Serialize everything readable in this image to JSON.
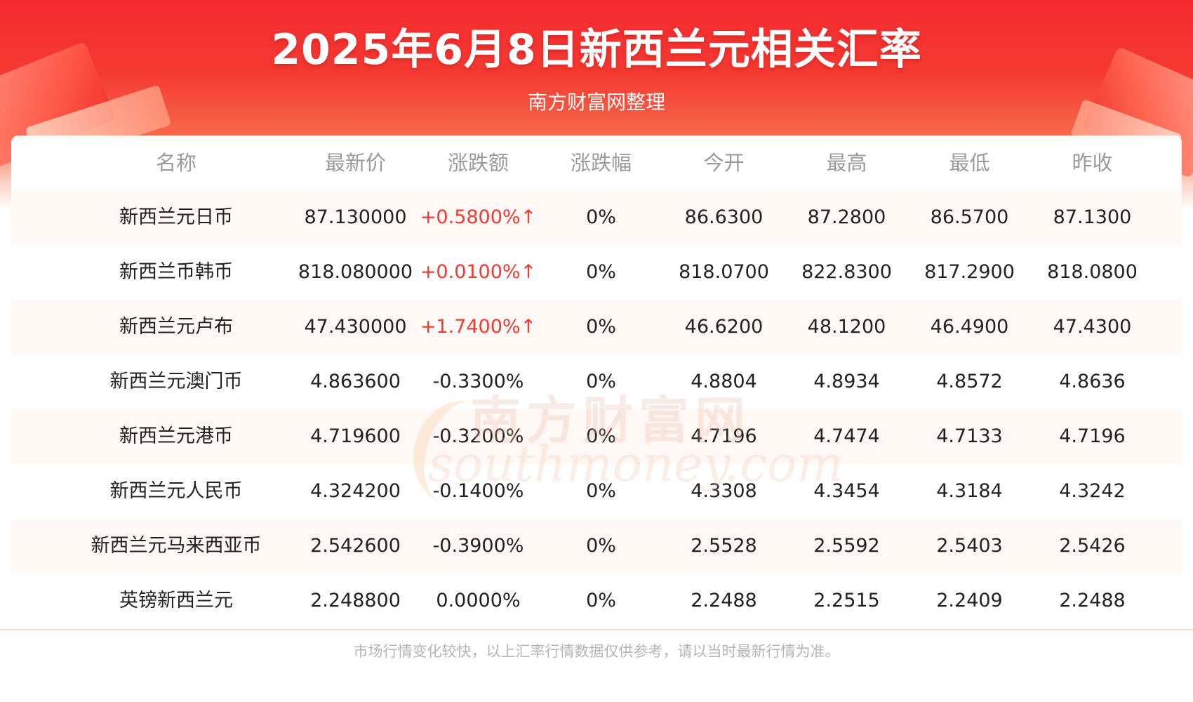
{
  "header": {
    "title": "2025年6月8日新西兰元相关汇率",
    "subtitle": "南方财富网整理"
  },
  "table": {
    "columns": [
      "名称",
      "最新价",
      "涨跌额",
      "涨跌幅",
      "今开",
      "最高",
      "最低",
      "昨收"
    ],
    "rows": [
      [
        "新西兰元日币",
        "87.130000",
        "+0.5800%↑",
        "0%",
        "86.6300",
        "87.2800",
        "86.5700",
        "87.1300"
      ],
      [
        "新西兰币韩币",
        "818.080000",
        "+0.0100%↑",
        "0%",
        "818.0700",
        "822.8300",
        "817.2900",
        "818.0800"
      ],
      [
        "新西兰元卢布",
        "47.430000",
        "+1.7400%↑",
        "0%",
        "46.6200",
        "48.1200",
        "46.4900",
        "47.4300"
      ],
      [
        "新西兰元澳门币",
        "4.863600",
        "-0.3300%",
        "0%",
        "4.8804",
        "4.8934",
        "4.8572",
        "4.8636"
      ],
      [
        "新西兰元港币",
        "4.719600",
        "-0.3200%",
        "0%",
        "4.7196",
        "4.7474",
        "4.7133",
        "4.7196"
      ],
      [
        "新西兰元人民币",
        "4.324200",
        "-0.1400%",
        "0%",
        "4.3308",
        "4.3454",
        "4.3184",
        "4.3242"
      ],
      [
        "新西兰元马来西亚币",
        "2.542600",
        "-0.3900%",
        "0%",
        "2.5528",
        "2.5592",
        "2.5403",
        "2.5426"
      ],
      [
        "英镑新西兰元",
        "2.248800",
        "0.0000%",
        "0%",
        "2.2488",
        "2.2515",
        "2.2409",
        "2.2488"
      ]
    ]
  },
  "watermark": {
    "cn": "南方财富网",
    "en": "southmoney.com"
  },
  "footer": {
    "note": "市场行情变化较快，以上汇率行情数据仅供参考，请以当时最新行情为准。"
  },
  "colors": {
    "header_red": "#f42a2f",
    "up_red": "#f23a32",
    "text": "#222222",
    "header_text": "#9a9a9a",
    "alt_row": "#fff8f5"
  }
}
